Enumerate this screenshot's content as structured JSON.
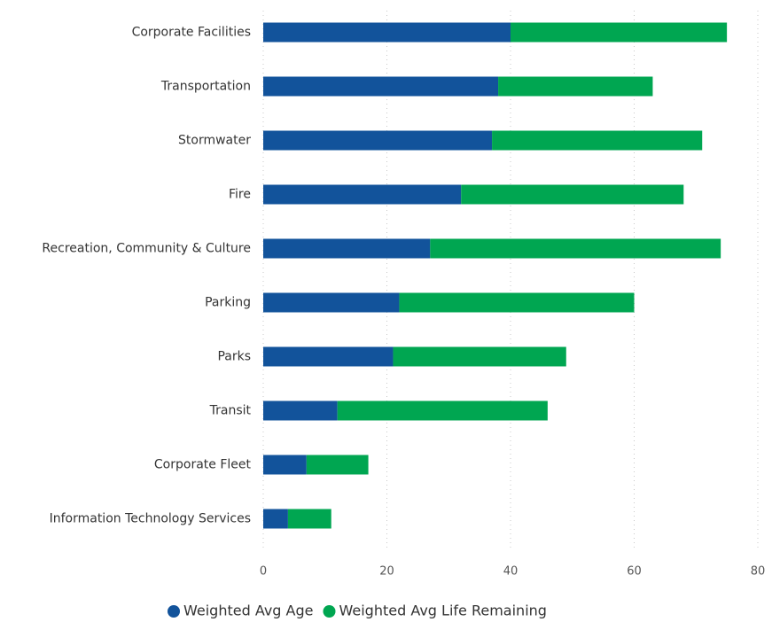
{
  "chart_data": {
    "type": "stacked_barh",
    "categories": [
      "Corporate Facilities",
      "Transportation",
      "Stormwater",
      "Fire",
      "Recreation, Community & Culture",
      "Parking",
      "Parks",
      "Transit",
      "Corporate Fleet",
      "Information Technology Services"
    ],
    "series": [
      {
        "name": "Weighted Avg Age",
        "color": "#12539b",
        "values": [
          40,
          38,
          37,
          32,
          27,
          22,
          21,
          12,
          7,
          4
        ]
      },
      {
        "name": "Weighted Avg Life Remaining",
        "color": "#00a651",
        "values": [
          35,
          25,
          34,
          36,
          47,
          38,
          28,
          34,
          10,
          7
        ]
      }
    ],
    "xlim": [
      0,
      80
    ],
    "xticks": [
      0,
      20,
      40,
      60,
      80
    ],
    "grid": true,
    "legend": "bottom"
  }
}
